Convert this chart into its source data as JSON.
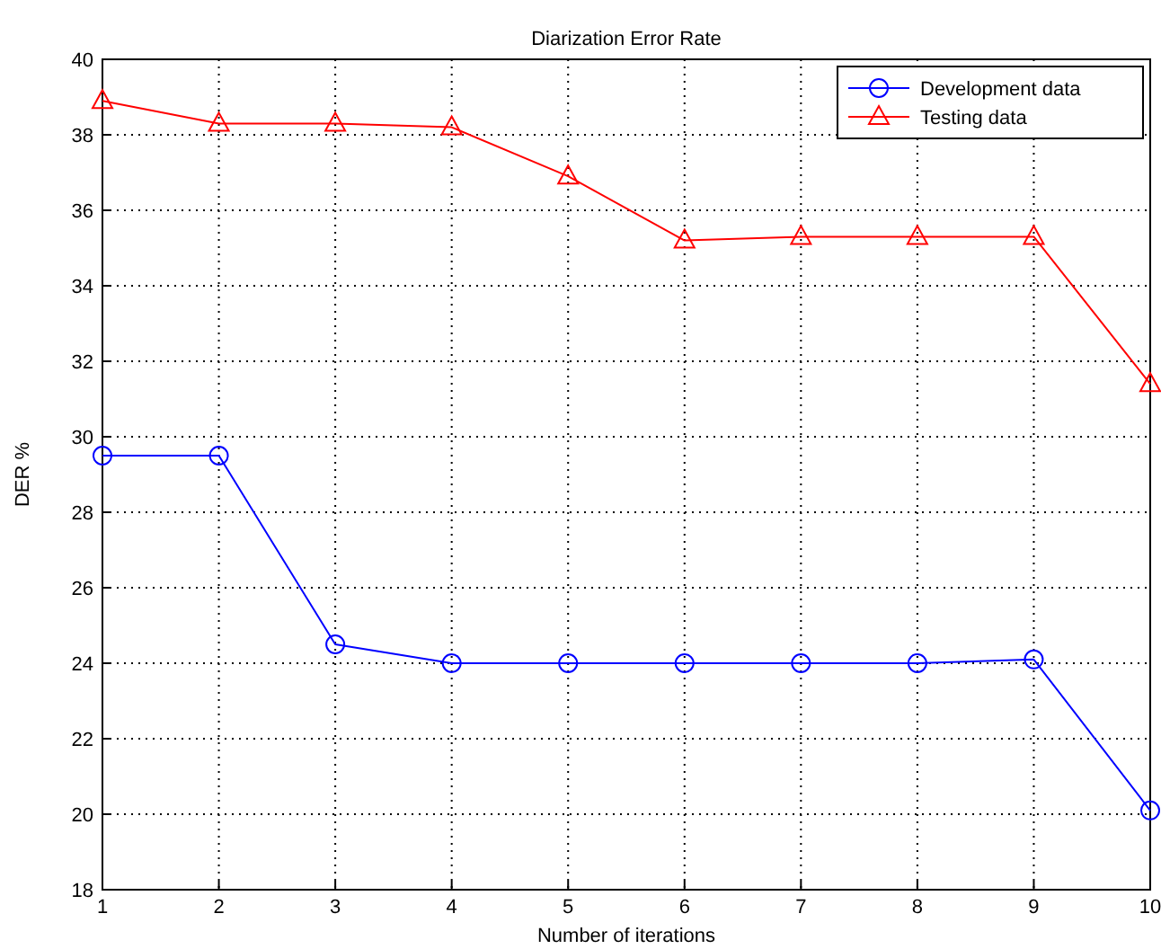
{
  "chart_data": {
    "type": "line",
    "title": "Diarization Error Rate",
    "xlabel": "Number of iterations",
    "ylabel": "DER %",
    "x": [
      1,
      2,
      3,
      4,
      5,
      6,
      7,
      8,
      9,
      10
    ],
    "series": [
      {
        "name": "Development data",
        "color": "#0000ff",
        "marker": "circle",
        "values": [
          29.5,
          29.5,
          24.5,
          24.0,
          24.0,
          24.0,
          24.0,
          24.0,
          24.1,
          20.1
        ]
      },
      {
        "name": "Testing data",
        "color": "#ff0000",
        "marker": "triangle",
        "values": [
          38.9,
          38.3,
          38.3,
          38.2,
          36.9,
          35.2,
          35.3,
          35.3,
          35.3,
          31.4
        ]
      }
    ],
    "xlim": [
      1,
      10
    ],
    "xticks": [
      1,
      2,
      3,
      4,
      5,
      6,
      7,
      8,
      9,
      10
    ],
    "ylim": [
      18,
      40
    ],
    "yticks": [
      18,
      20,
      22,
      24,
      26,
      28,
      30,
      32,
      34,
      36,
      38,
      40
    ],
    "grid": true,
    "legend": "top right",
    "line_style": "solid"
  }
}
